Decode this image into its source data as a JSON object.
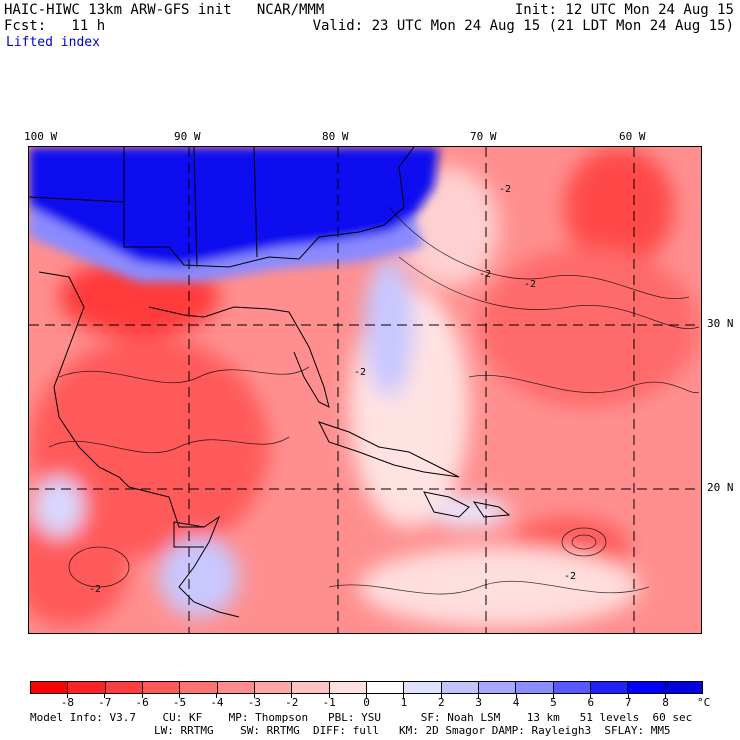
{
  "header": {
    "line1_left": "HAIC-HIWC 13km ARW-GFS init   NCAR/MMM",
    "line1_right": "Init: 12 UTC Mon 24 Aug 15",
    "line2_left": "Fcst:   11 h",
    "line2_right": "Valid: 23 UTC Mon 24 Aug 15 (21 LDT Mon 24 Aug 15)",
    "field_name": "Lifted index"
  },
  "map": {
    "lon_labels": [
      "100 W",
      "90 W",
      "80 W",
      "70 W",
      "60 W"
    ],
    "lat_labels": [
      "30 N",
      "20 N"
    ],
    "contour_label": "-2"
  },
  "colorbar": {
    "levels": [
      "-8",
      "-7",
      "-6",
      "-5",
      "-4",
      "-3",
      "-2",
      "-1",
      "0",
      "1",
      "2",
      "3",
      "4",
      "5",
      "6",
      "7",
      "8"
    ],
    "unit": "°C",
    "colors": [
      "#ff0000",
      "#ff2222",
      "#ff3f3f",
      "#ff5959",
      "#ff7373",
      "#ff8d8d",
      "#ffa7a7",
      "#ffc3c3",
      "#ffe0e0",
      "#ffffff",
      "#e0e0ff",
      "#c3c3ff",
      "#a7a7ff",
      "#8d8dff",
      "#5959ff",
      "#2222ff",
      "#0000ff",
      "#0000e0"
    ]
  },
  "footer": {
    "line1": "Model Info: V3.7    CU: KF    MP: Thompson   PBL: YSU      SF: Noah LSM    13 km   51 levels  60 sec",
    "line2": "LW: RRTMG    SW: RRTMG  DIFF: full   KM: 2D Smagor DAMP: Rayleigh3  SFLAY: MM5"
  }
}
